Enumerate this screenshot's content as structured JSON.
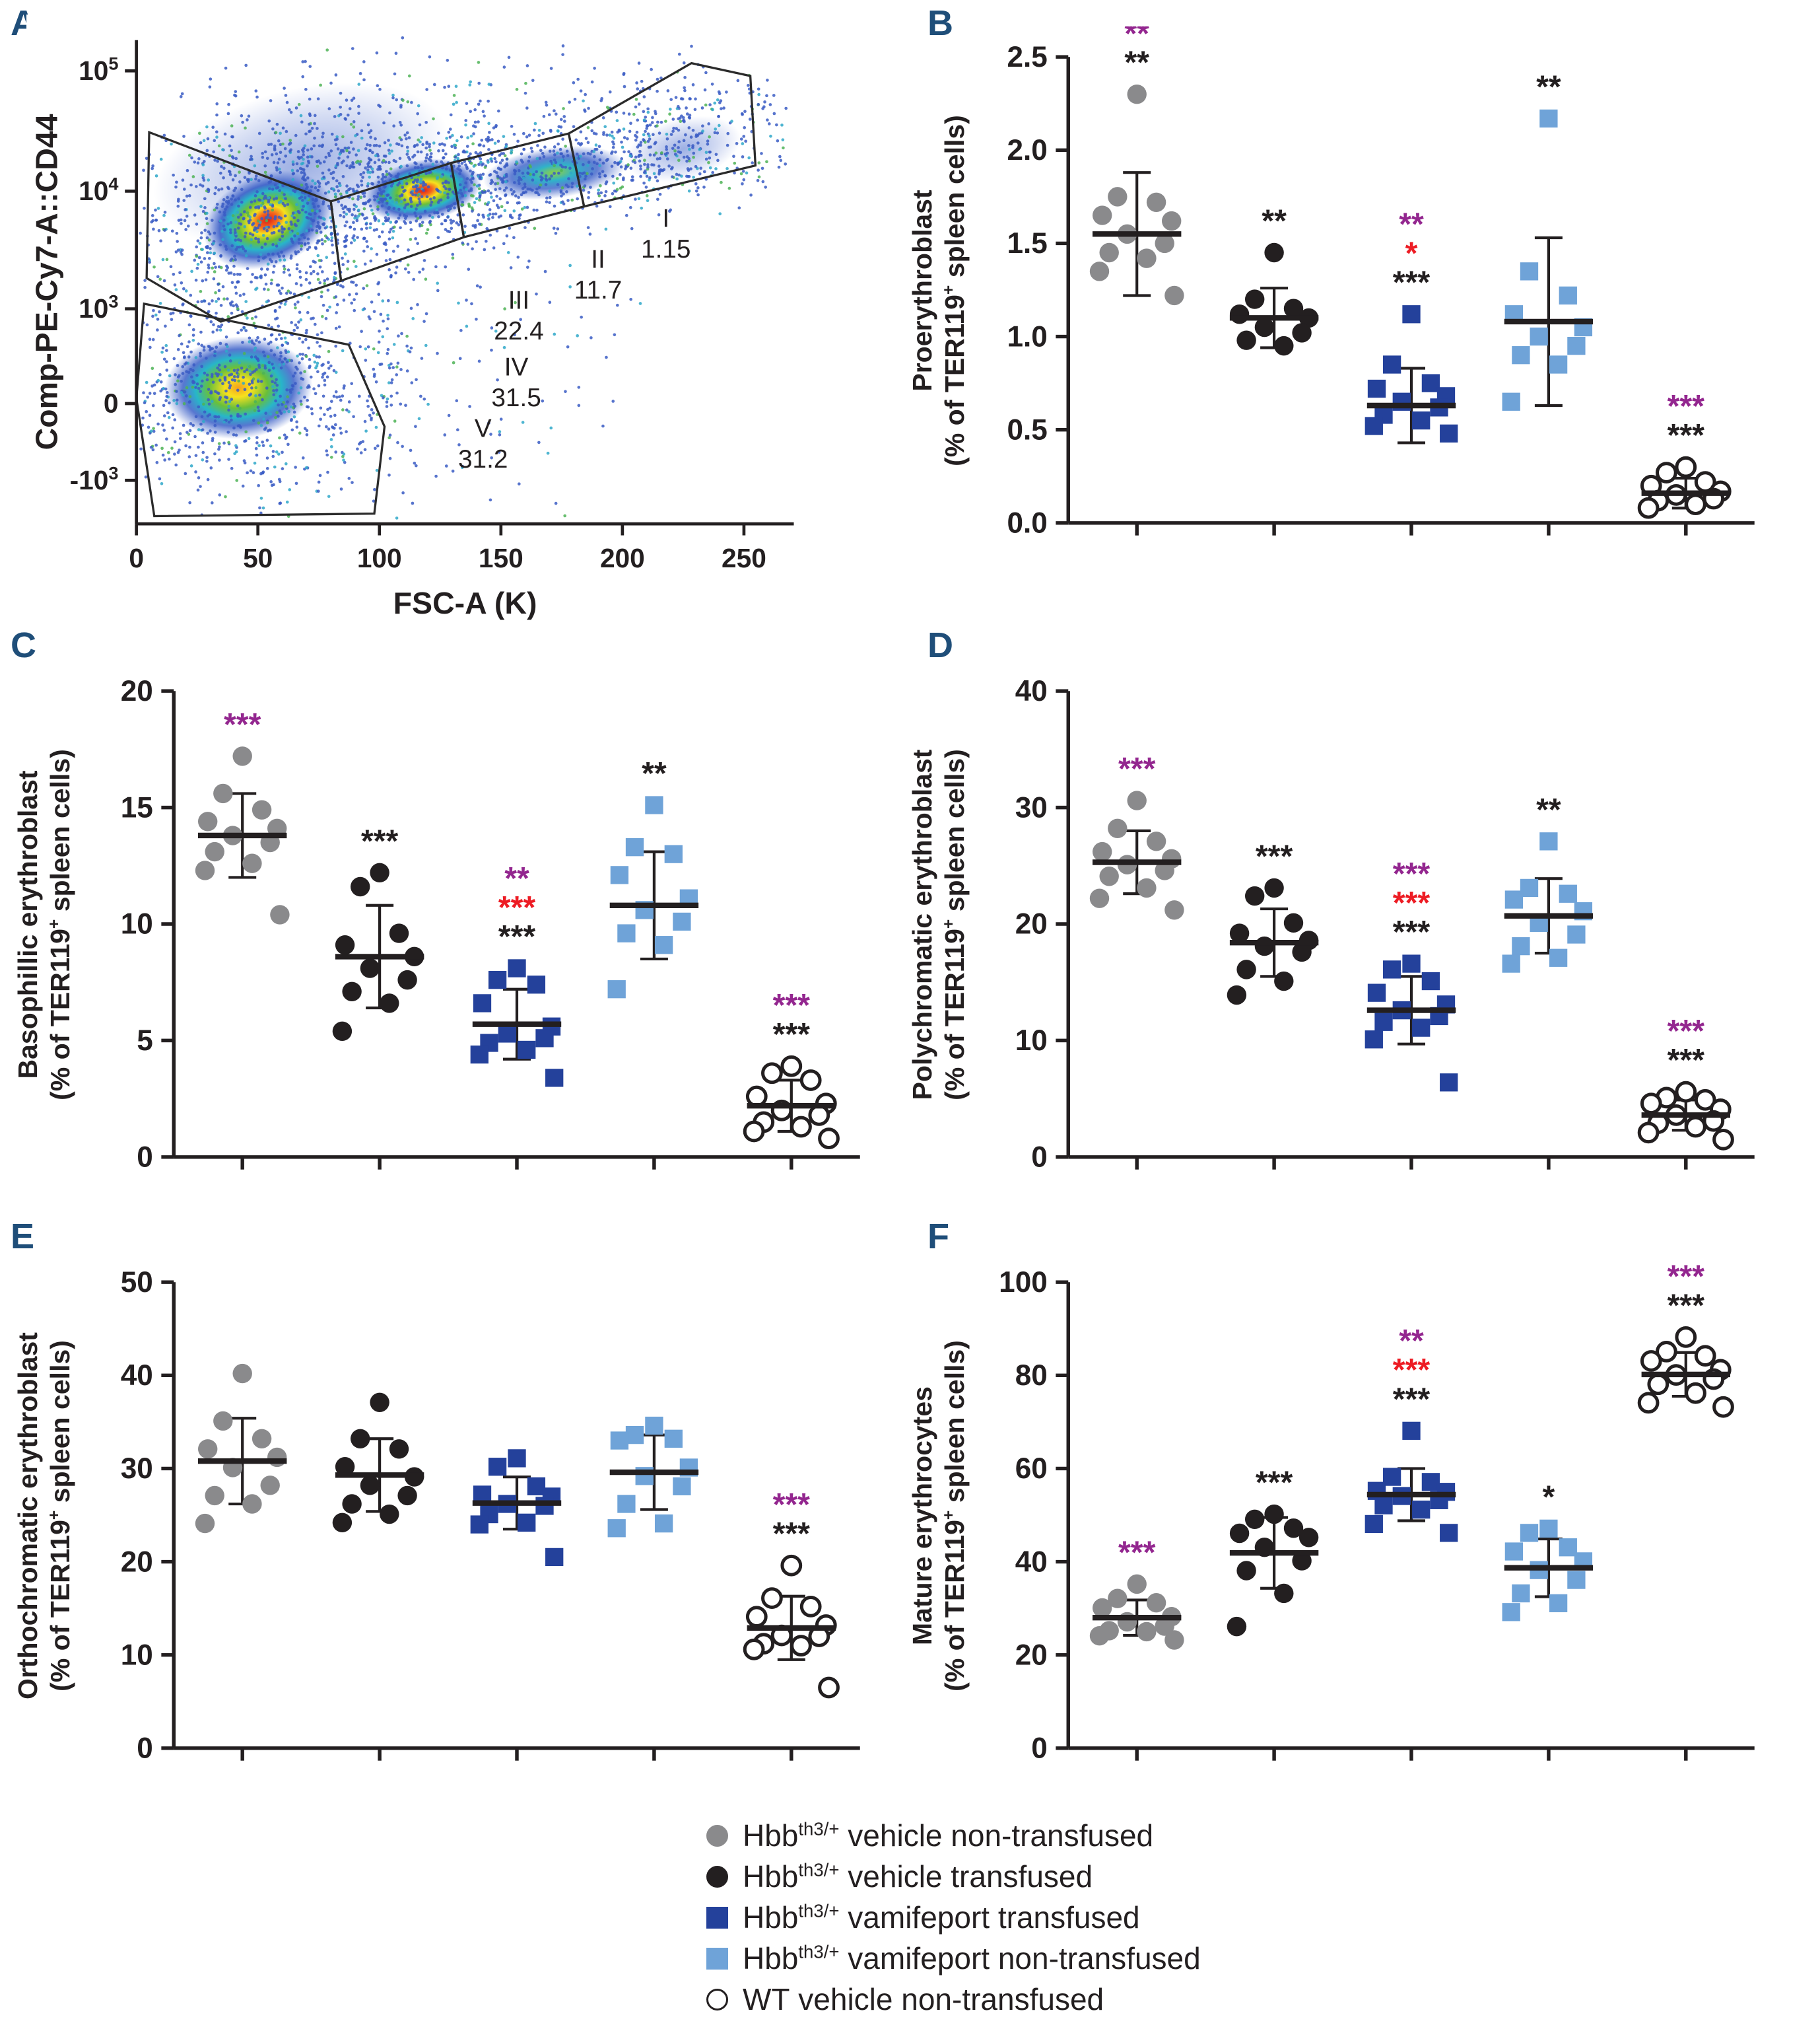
{
  "colors": {
    "panel_letter": "#1f4e79",
    "axis": "#231f20",
    "sig_purple": "#93268f",
    "sig_red": "#ed1c24",
    "sig_black": "#231f20"
  },
  "series": [
    {
      "key": "hbb_vehicle_nontransfused",
      "marker": "circle",
      "fill": "#8a8a8c",
      "stroke": "#8a8a8c",
      "label_prefix": "Hbb",
      "label_sup": "th3/+",
      "label_rest": " vehicle non-transfused"
    },
    {
      "key": "hbb_vehicle_transfused",
      "marker": "circle",
      "fill": "#231f20",
      "stroke": "#231f20",
      "label_prefix": "Hbb",
      "label_sup": "th3/+",
      "label_rest": " vehicle transfused"
    },
    {
      "key": "hbb_vamifeport_transfused",
      "marker": "square",
      "fill": "#24419b",
      "stroke": "#24419b",
      "label_prefix": "Hbb",
      "label_sup": "th3/+",
      "label_rest": " vamifeport transfused"
    },
    {
      "key": "hbb_vamifeport_nontransfused",
      "marker": "square",
      "fill": "#6fa3d8",
      "stroke": "#6fa3d8",
      "label_prefix": "Hbb",
      "label_sup": "th3/+",
      "label_rest": " vamifeport non-transfused"
    },
    {
      "key": "wt_vehicle_nontransfused",
      "marker": "circle",
      "fill": "#ffffff",
      "stroke": "#231f20",
      "label_prefix": "WT",
      "label_sup": "",
      "label_rest": " vehicle non-transfused"
    }
  ],
  "chart_data": [
    {
      "type": "flow-density",
      "panel": "A",
      "xlabel": "FSC-A (K)",
      "ylabel": "Comp-PE-Cy7-A::CD44",
      "xticks": [
        {
          "v": 0,
          "label": "0"
        },
        {
          "v": 50,
          "label": "50"
        },
        {
          "v": 100,
          "label": "100"
        },
        {
          "v": 150,
          "label": "150"
        },
        {
          "v": 200,
          "label": "200"
        },
        {
          "v": 250,
          "label": "250"
        }
      ],
      "ytick_labels": [
        {
          "base": "10",
          "exp": "5"
        },
        {
          "base": "10",
          "exp": "4"
        },
        {
          "base": "10",
          "exp": "3"
        },
        {
          "base": "0",
          "exp": ""
        },
        {
          "base": "-10",
          "exp": "3"
        }
      ],
      "gates": [
        {
          "name": "I",
          "percent": "1.15"
        },
        {
          "name": "II",
          "percent": "11.7"
        },
        {
          "name": "III",
          "percent": "22.4"
        },
        {
          "name": "IV",
          "percent": "31.5"
        },
        {
          "name": "V",
          "percent": "31.2"
        }
      ],
      "populations": [
        {
          "name": "CD44-high main cluster",
          "fsc": 54,
          "cd44_log": 3.75
        },
        {
          "name": "CD44-high secondary cluster",
          "fsc": 118,
          "cd44_log": 4.0
        },
        {
          "name": "CD44-low cluster",
          "fsc": 42,
          "cd44_log": 0.5
        },
        {
          "name": "gate II band",
          "fsc": 172,
          "cd44_log": 4.15
        },
        {
          "name": "gate I tail",
          "fsc": 225,
          "cd44_log": 4.35
        }
      ]
    },
    {
      "type": "scatter",
      "panel": "B",
      "ylabel_parts": {
        "line1": "Proerythroblast",
        "line2_pre": "(% of TER119",
        "sup": "+",
        "line2_post": " spleen cells)"
      },
      "ylim": [
        0,
        2.5
      ],
      "yticks": [
        {
          "v": 0,
          "label": "0.0"
        },
        {
          "v": 0.5,
          "label": "0.5"
        },
        {
          "v": 1,
          "label": "1.0"
        },
        {
          "v": 1.5,
          "label": "1.5"
        },
        {
          "v": 2,
          "label": "2.0"
        },
        {
          "v": 2.5,
          "label": "2.5"
        }
      ],
      "groups": [
        {
          "series": 0,
          "mean": 1.55,
          "sd": 0.33,
          "points": [
            2.3,
            1.75,
            1.72,
            1.65,
            1.62,
            1.55,
            1.5,
            1.45,
            1.42,
            1.35,
            1.22
          ],
          "sig": [
            {
              "stars": "**",
              "color": "purple"
            },
            {
              "stars": "**",
              "color": "black"
            }
          ]
        },
        {
          "series": 1,
          "mean": 1.1,
          "sd": 0.16,
          "points": [
            1.45,
            1.2,
            1.15,
            1.12,
            1.1,
            1.05,
            1.02,
            0.98,
            0.95
          ],
          "sig": [
            {
              "stars": "**",
              "color": "black"
            }
          ]
        },
        {
          "series": 2,
          "mean": 0.63,
          "sd": 0.2,
          "points": [
            1.12,
            0.85,
            0.75,
            0.72,
            0.68,
            0.65,
            0.62,
            0.58,
            0.55,
            0.52,
            0.48
          ],
          "sig": [
            {
              "stars": "**",
              "color": "purple"
            },
            {
              "stars": "*",
              "color": "red"
            },
            {
              "stars": "***",
              "color": "black"
            }
          ]
        },
        {
          "series": 3,
          "mean": 1.08,
          "sd": 0.45,
          "points": [
            2.17,
            1.35,
            1.22,
            1.12,
            1.05,
            1.0,
            0.95,
            0.9,
            0.85,
            0.65
          ],
          "sig": [
            {
              "stars": "**",
              "color": "black"
            }
          ]
        },
        {
          "series": 4,
          "mean": 0.16,
          "sd": 0.08,
          "points": [
            0.3,
            0.27,
            0.22,
            0.2,
            0.17,
            0.15,
            0.13,
            0.12,
            0.1,
            0.08
          ],
          "sig": [
            {
              "stars": "***",
              "color": "purple"
            },
            {
              "stars": "***",
              "color": "black"
            }
          ]
        }
      ]
    },
    {
      "type": "scatter",
      "panel": "C",
      "ylabel_parts": {
        "line1": "Basophillic erythroblast",
        "line2_pre": "(% of TER119",
        "sup": "+",
        "line2_post": " spleen cells)"
      },
      "ylim": [
        0,
        20
      ],
      "yticks": [
        {
          "v": 0,
          "label": "0"
        },
        {
          "v": 5,
          "label": "5"
        },
        {
          "v": 10,
          "label": "10"
        },
        {
          "v": 15,
          "label": "15"
        },
        {
          "v": 20,
          "label": "20"
        }
      ],
      "groups": [
        {
          "series": 0,
          "mean": 13.8,
          "sd": 1.8,
          "points": [
            17.2,
            15.6,
            14.9,
            14.4,
            14.1,
            13.8,
            13.5,
            13.1,
            12.6,
            12.3,
            10.4
          ],
          "sig": [
            {
              "stars": "***",
              "color": "purple"
            }
          ]
        },
        {
          "series": 1,
          "mean": 8.6,
          "sd": 2.2,
          "points": [
            12.2,
            11.6,
            9.6,
            9.1,
            8.6,
            8.1,
            7.6,
            7.1,
            6.6,
            5.4
          ],
          "sig": [
            {
              "stars": "***",
              "color": "black"
            }
          ]
        },
        {
          "series": 2,
          "mean": 5.7,
          "sd": 1.5,
          "points": [
            8.1,
            7.6,
            7.4,
            6.6,
            5.6,
            5.3,
            5.1,
            4.9,
            4.6,
            4.4,
            3.4
          ],
          "sig": [
            {
              "stars": "**",
              "color": "purple"
            },
            {
              "stars": "***",
              "color": "red"
            },
            {
              "stars": "***",
              "color": "black"
            }
          ]
        },
        {
          "series": 3,
          "mean": 10.8,
          "sd": 2.3,
          "points": [
            15.1,
            13.3,
            13.0,
            12.1,
            11.1,
            10.6,
            10.1,
            9.6,
            9.1,
            7.2
          ],
          "sig": [
            {
              "stars": "**",
              "color": "black"
            }
          ]
        },
        {
          "series": 4,
          "mean": 2.2,
          "sd": 1.1,
          "points": [
            3.9,
            3.6,
            3.3,
            2.6,
            2.3,
            2.0,
            1.8,
            1.5,
            1.3,
            1.1,
            0.8
          ],
          "sig": [
            {
              "stars": "***",
              "color": "purple"
            },
            {
              "stars": "***",
              "color": "black"
            }
          ]
        }
      ]
    },
    {
      "type": "scatter",
      "panel": "D",
      "ylabel_parts": {
        "line1": "Polychromatic erythroblast",
        "line2_pre": "(% of TER119",
        "sup": "+",
        "line2_post": " spleen cells)"
      },
      "ylim": [
        0,
        40
      ],
      "yticks": [
        {
          "v": 0,
          "label": "0"
        },
        {
          "v": 10,
          "label": "10"
        },
        {
          "v": 20,
          "label": "20"
        },
        {
          "v": 30,
          "label": "30"
        },
        {
          "v": 40,
          "label": "40"
        }
      ],
      "groups": [
        {
          "series": 0,
          "mean": 25.3,
          "sd": 2.7,
          "points": [
            30.6,
            28.2,
            27.1,
            26.2,
            25.6,
            25.1,
            24.6,
            24.1,
            23.1,
            22.2,
            21.2
          ],
          "sig": [
            {
              "stars": "***",
              "color": "purple"
            }
          ]
        },
        {
          "series": 1,
          "mean": 18.4,
          "sd": 2.9,
          "points": [
            23.1,
            22.4,
            20.1,
            19.2,
            18.6,
            18.1,
            17.6,
            16.1,
            15.1,
            13.9
          ],
          "sig": [
            {
              "stars": "***",
              "color": "black"
            }
          ]
        },
        {
          "series": 2,
          "mean": 12.6,
          "sd": 2.9,
          "points": [
            16.6,
            16.1,
            15.1,
            14.1,
            13.1,
            12.6,
            12.1,
            11.6,
            11.1,
            10.1,
            6.4
          ],
          "sig": [
            {
              "stars": "***",
              "color": "purple"
            },
            {
              "stars": "***",
              "color": "red"
            },
            {
              "stars": "***",
              "color": "black"
            }
          ]
        },
        {
          "series": 3,
          "mean": 20.7,
          "sd": 3.2,
          "points": [
            27.1,
            23.1,
            22.6,
            22.1,
            21.1,
            20.1,
            19.1,
            18.1,
            17.1,
            16.6
          ],
          "sig": [
            {
              "stars": "**",
              "color": "black"
            }
          ]
        },
        {
          "series": 4,
          "mean": 3.6,
          "sd": 1.3,
          "points": [
            5.6,
            5.1,
            4.9,
            4.6,
            4.1,
            3.6,
            3.1,
            2.9,
            2.6,
            2.1,
            1.5
          ],
          "sig": [
            {
              "stars": "***",
              "color": "purple"
            },
            {
              "stars": "***",
              "color": "black"
            }
          ]
        }
      ]
    },
    {
      "type": "scatter",
      "panel": "E",
      "ylabel_parts": {
        "line1": "Orthochromatic erythroblast",
        "line2_pre": "(% of TER119",
        "sup": "+",
        "line2_post": " spleen cells)"
      },
      "ylim": [
        0,
        50
      ],
      "yticks": [
        {
          "v": 0,
          "label": "0"
        },
        {
          "v": 10,
          "label": "10"
        },
        {
          "v": 20,
          "label": "20"
        },
        {
          "v": 30,
          "label": "30"
        },
        {
          "v": 40,
          "label": "40"
        },
        {
          "v": 50,
          "label": "50"
        }
      ],
      "groups": [
        {
          "series": 0,
          "mean": 30.8,
          "sd": 4.6,
          "points": [
            40.2,
            35.1,
            33.2,
            32.1,
            31.2,
            30.1,
            28.2,
            27.1,
            26.2,
            24.1
          ],
          "sig": []
        },
        {
          "series": 1,
          "mean": 29.3,
          "sd": 3.9,
          "points": [
            37.1,
            33.2,
            32.1,
            30.2,
            29.1,
            28.2,
            27.1,
            26.2,
            25.1,
            24.2
          ],
          "sig": []
        },
        {
          "series": 2,
          "mean": 26.3,
          "sd": 2.8,
          "points": [
            31.1,
            30.2,
            28.1,
            27.2,
            27.0,
            26.2,
            26.0,
            25.1,
            24.2,
            24.0,
            20.5
          ],
          "sig": []
        },
        {
          "series": 3,
          "mean": 29.6,
          "sd": 4.0,
          "points": [
            34.6,
            33.6,
            33.2,
            33.0,
            30.1,
            29.2,
            28.1,
            26.2,
            24.1,
            23.6
          ],
          "sig": []
        },
        {
          "series": 4,
          "mean": 12.9,
          "sd": 3.4,
          "points": [
            19.6,
            16.1,
            15.2,
            14.1,
            13.2,
            12.1,
            12.0,
            11.2,
            11.0,
            10.6,
            6.5
          ],
          "sig": [
            {
              "stars": "***",
              "color": "purple"
            },
            {
              "stars": "***",
              "color": "black"
            }
          ]
        }
      ]
    },
    {
      "type": "scatter",
      "panel": "F",
      "ylabel_parts": {
        "line1": "Mature erythrocytes",
        "line2_pre": "(% of TER119",
        "sup": "+",
        "line2_post": " spleen cells)"
      },
      "ylim": [
        0,
        100
      ],
      "yticks": [
        {
          "v": 0,
          "label": "0"
        },
        {
          "v": 20,
          "label": "20"
        },
        {
          "v": 40,
          "label": "40"
        },
        {
          "v": 60,
          "label": "60"
        },
        {
          "v": 80,
          "label": "80"
        },
        {
          "v": 100,
          "label": "100"
        }
      ],
      "groups": [
        {
          "series": 0,
          "mean": 28.0,
          "sd": 3.8,
          "points": [
            35.2,
            32.1,
            31.2,
            30.1,
            28.2,
            27.1,
            26.2,
            25.2,
            25.0,
            24.1,
            23.2
          ],
          "sig": [
            {
              "stars": "***",
              "color": "purple"
            }
          ]
        },
        {
          "series": 1,
          "mean": 41.9,
          "sd": 7.6,
          "points": [
            50.2,
            49.1,
            47.2,
            46.1,
            45.2,
            43.1,
            40.2,
            38.1,
            33.2,
            26.1
          ],
          "sig": [
            {
              "stars": "***",
              "color": "black"
            }
          ]
        },
        {
          "series": 2,
          "mean": 54.4,
          "sd": 5.6,
          "points": [
            68.1,
            58.2,
            57.1,
            55.2,
            55.0,
            54.1,
            53.2,
            52.1,
            51.2,
            48.1,
            46.2
          ],
          "sig": [
            {
              "stars": "**",
              "color": "purple"
            },
            {
              "stars": "***",
              "color": "red"
            },
            {
              "stars": "***",
              "color": "black"
            }
          ]
        },
        {
          "series": 3,
          "mean": 38.7,
          "sd": 6.2,
          "points": [
            47.1,
            46.2,
            43.1,
            42.2,
            40.1,
            38.2,
            36.1,
            33.2,
            31.1,
            29.2
          ],
          "sig": [
            {
              "stars": "*",
              "color": "black"
            }
          ]
        },
        {
          "series": 4,
          "mean": 80.2,
          "sd": 4.7,
          "points": [
            88.2,
            85.1,
            84.2,
            83.1,
            81.2,
            80.1,
            79.2,
            78.1,
            76.2,
            74.1,
            73.2
          ],
          "sig": [
            {
              "stars": "***",
              "color": "purple"
            },
            {
              "stars": "***",
              "color": "black"
            }
          ]
        }
      ]
    }
  ]
}
